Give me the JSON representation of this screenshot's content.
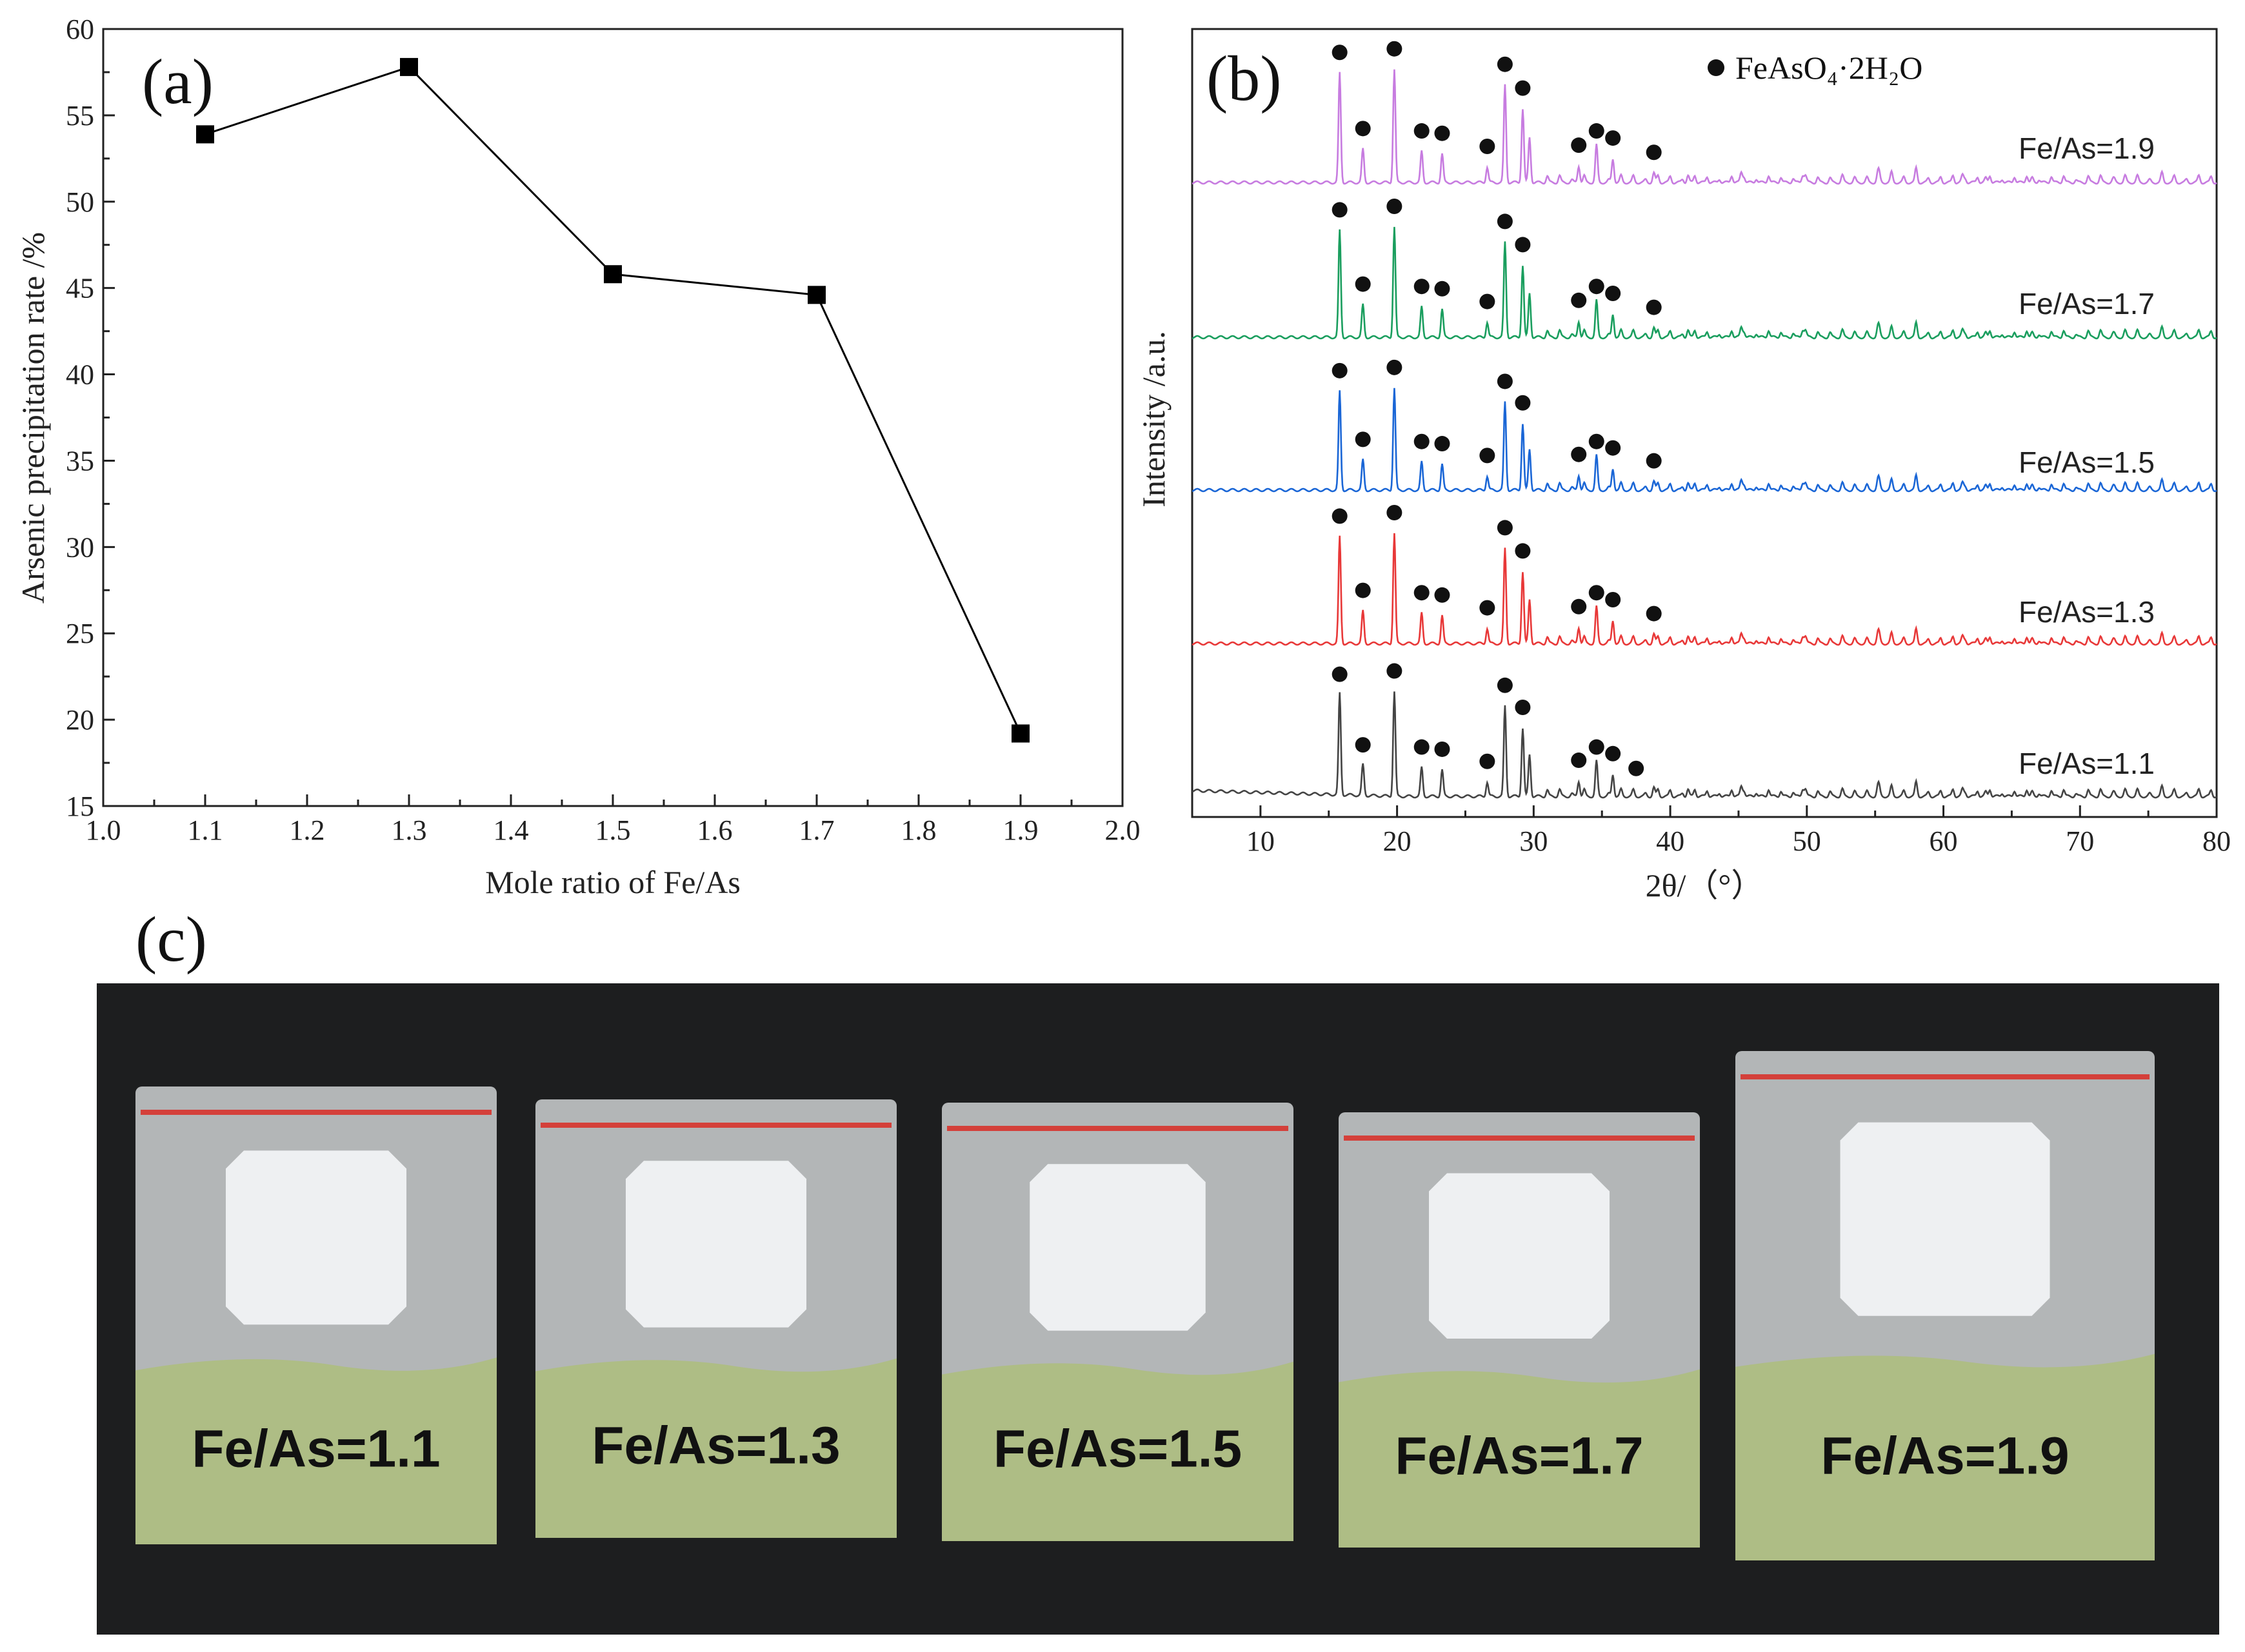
{
  "panels": {
    "a": "(a)",
    "b": "(b)",
    "c": "(c)"
  },
  "colors": {
    "background": "#ffffff",
    "axis": "#222222",
    "photo_background": "#1d1e1f",
    "powder": "#aebd85",
    "bag_stripe": "#d4403a"
  },
  "chart_data": [
    {
      "type": "line",
      "panel": "(a)",
      "xlabel": "Mole ratio of Fe/As",
      "ylabel": "Arsenic precipitation rate /%",
      "xlim": [
        1.0,
        2.0
      ],
      "ylim": [
        15,
        60
      ],
      "xticks": [
        "1.0",
        "1.1",
        "1.2",
        "1.3",
        "1.4",
        "1.5",
        "1.6",
        "1.7",
        "1.8",
        "1.9",
        "2.0"
      ],
      "yticks": [
        "15",
        "20",
        "25",
        "30",
        "35",
        "40",
        "45",
        "50",
        "55",
        "60"
      ],
      "x": [
        1.1,
        1.3,
        1.5,
        1.7,
        1.9
      ],
      "values": [
        53.9,
        57.8,
        45.8,
        44.6,
        19.2
      ],
      "marker": "square",
      "color": "#000000",
      "grid": false
    },
    {
      "type": "line",
      "panel": "(b)",
      "xlabel": "2θ/（°）",
      "ylabel": "Intensity /a.u.",
      "xlim": [
        5,
        80
      ],
      "xticks": [
        "10",
        "20",
        "30",
        "40",
        "50",
        "60",
        "70",
        "80"
      ],
      "legend": "FeAsO₄·2H₂O",
      "legend_position": "top-right",
      "grid": false,
      "peaks_2theta": [
        15.8,
        17.5,
        19.8,
        21.8,
        23.3,
        26.6,
        27.9,
        29.2,
        29.7,
        33.3,
        34.6,
        35.8,
        38.8
      ],
      "peak_heights": [
        0.92,
        0.28,
        0.95,
        0.26,
        0.24,
        0.13,
        0.82,
        0.62,
        0.38,
        0.14,
        0.26,
        0.2,
        0.08
      ],
      "series": [
        {
          "name": "Fe/As=1.9",
          "color": "#c77ce0",
          "peak_scale": 0.82,
          "marked_peaks": [
            15.8,
            17.5,
            19.8,
            21.8,
            23.3,
            26.6,
            27.9,
            29.2,
            33.3,
            34.6,
            35.8,
            38.8
          ]
        },
        {
          "name": "Fe/As=1.7",
          "color": "#1a9e5e",
          "peak_scale": 0.8,
          "marked_peaks": [
            15.8,
            17.5,
            19.8,
            21.8,
            23.3,
            26.6,
            27.9,
            29.2,
            33.3,
            34.6,
            35.8,
            38.8
          ]
        },
        {
          "name": "Fe/As=1.5",
          "color": "#1a66d6",
          "peak_scale": 0.74,
          "marked_peaks": [
            15.8,
            17.5,
            19.8,
            21.8,
            23.3,
            26.6,
            27.9,
            29.2,
            33.3,
            34.6,
            35.8,
            38.8
          ]
        },
        {
          "name": "Fe/As=1.3",
          "color": "#e83838",
          "peak_scale": 0.8,
          "marked_peaks": [
            15.8,
            17.5,
            19.8,
            21.8,
            23.3,
            26.6,
            27.9,
            29.2,
            33.3,
            34.6,
            35.8,
            38.8
          ]
        },
        {
          "name": "Fe/As=1.1",
          "color": "#444444",
          "peak_scale": 0.76,
          "marked_peaks": [
            15.8,
            17.5,
            19.8,
            21.8,
            23.3,
            26.6,
            27.9,
            29.2,
            33.3,
            34.6,
            35.8,
            37.5
          ]
        }
      ]
    }
  ],
  "photo": {
    "bags": [
      {
        "label": "Fe/As=1.1"
      },
      {
        "label": "Fe/As=1.3"
      },
      {
        "label": "Fe/As=1.5"
      },
      {
        "label": "Fe/As=1.7"
      },
      {
        "label": "Fe/As=1.9"
      }
    ]
  }
}
